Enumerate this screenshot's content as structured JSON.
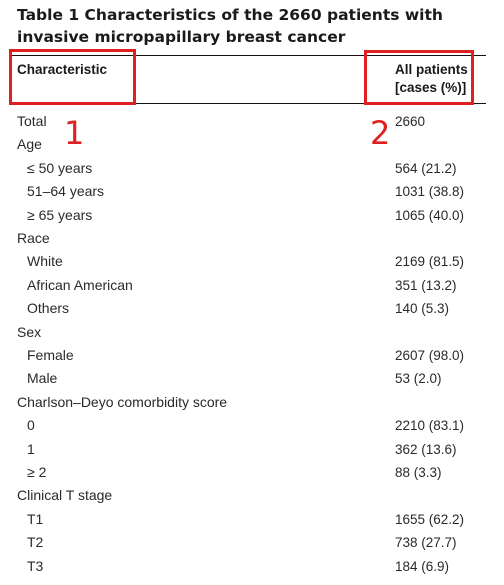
{
  "table": {
    "title": "Table 1  Characteristics of the 2660 patients with invasive micropapillary breast cancer",
    "header": {
      "characteristic": "Characteristic",
      "all_patients_line1": "All patients",
      "all_patients_line2": "[cases (%)]"
    },
    "annotations": {
      "marker_1": "1",
      "marker_2": "2",
      "box_color": "#e02020"
    },
    "rows": [
      {
        "label": "Total",
        "value": "2660",
        "indent": 0
      },
      {
        "label": "Age",
        "value": "",
        "indent": 0
      },
      {
        "label": "≤ 50 years",
        "value": "564 (21.2)",
        "indent": 1
      },
      {
        "label": "51–64 years",
        "value": "1031 (38.8)",
        "indent": 1
      },
      {
        "label": "≥ 65 years",
        "value": "1065 (40.0)",
        "indent": 1
      },
      {
        "label": "Race",
        "value": "",
        "indent": 0
      },
      {
        "label": "White",
        "value": "2169 (81.5)",
        "indent": 1
      },
      {
        "label": "African American",
        "value": "351 (13.2)",
        "indent": 1
      },
      {
        "label": "Others",
        "value": "140 (5.3)",
        "indent": 1
      },
      {
        "label": "Sex",
        "value": "",
        "indent": 0
      },
      {
        "label": "Female",
        "value": "2607 (98.0)",
        "indent": 1
      },
      {
        "label": "Male",
        "value": "53 (2.0)",
        "indent": 1
      },
      {
        "label": "Charlson–Deyo comorbidity score",
        "value": "",
        "indent": 0
      },
      {
        "label": "0",
        "value": "2210 (83.1)",
        "indent": 1
      },
      {
        "label": "1",
        "value": "362 (13.6)",
        "indent": 1
      },
      {
        "label": "≥ 2",
        "value": "88 (3.3)",
        "indent": 1
      },
      {
        "label": "Clinical T stage",
        "value": "",
        "indent": 0
      },
      {
        "label": "T1",
        "value": "1655 (62.2)",
        "indent": 1
      },
      {
        "label": "T2",
        "value": "738 (27.7)",
        "indent": 1
      },
      {
        "label": "T3",
        "value": "184 (6.9)",
        "indent": 1
      }
    ]
  }
}
